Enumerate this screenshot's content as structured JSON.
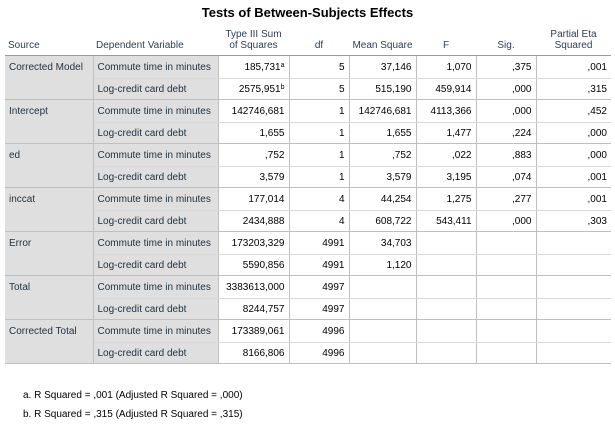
{
  "title": "Tests of Between-Subjects Effects",
  "headers": {
    "source": "Source",
    "dependent": "Dependent Variable",
    "ss": "Type III Sum of Squares",
    "df": "df",
    "ms": "Mean Square",
    "f": "F",
    "sig": "Sig.",
    "eta": "Partial Eta Squared"
  },
  "rows": [
    {
      "source": "Corrected Model",
      "r1": {
        "dep": "Commute time in minutes",
        "ss": "185,731",
        "sup": "a",
        "df": "5",
        "ms": "37,146",
        "f": "1,070",
        "sig": ",375",
        "eta": ",001"
      },
      "r2": {
        "dep": "Log-credit card debt",
        "ss": "2575,951",
        "sup": "b",
        "df": "5",
        "ms": "515,190",
        "f": "459,914",
        "sig": ",000",
        "eta": ",315"
      }
    },
    {
      "source": "Intercept",
      "r1": {
        "dep": "Commute time in minutes",
        "ss": "142746,681",
        "df": "1",
        "ms": "142746,681",
        "f": "4113,366",
        "sig": ",000",
        "eta": ",452"
      },
      "r2": {
        "dep": "Log-credit card debt",
        "ss": "1,655",
        "df": "1",
        "ms": "1,655",
        "f": "1,477",
        "sig": ",224",
        "eta": ",000"
      }
    },
    {
      "source": "ed",
      "r1": {
        "dep": "Commute time in minutes",
        "ss": ",752",
        "df": "1",
        "ms": ",752",
        "f": ",022",
        "sig": ",883",
        "eta": ",000"
      },
      "r2": {
        "dep": "Log-credit card debt",
        "ss": "3,579",
        "df": "1",
        "ms": "3,579",
        "f": "3,195",
        "sig": ",074",
        "eta": ",001"
      }
    },
    {
      "source": "inccat",
      "r1": {
        "dep": "Commute time in minutes",
        "ss": "177,014",
        "df": "4",
        "ms": "44,254",
        "f": "1,275",
        "sig": ",277",
        "eta": ",001"
      },
      "r2": {
        "dep": "Log-credit card debt",
        "ss": "2434,888",
        "df": "4",
        "ms": "608,722",
        "f": "543,411",
        "sig": ",000",
        "eta": ",303"
      }
    },
    {
      "source": "Error",
      "r1": {
        "dep": "Commute time in minutes",
        "ss": "173203,329",
        "df": "4991",
        "ms": "34,703",
        "f": "",
        "sig": "",
        "eta": ""
      },
      "r2": {
        "dep": "Log-credit card debt",
        "ss": "5590,856",
        "df": "4991",
        "ms": "1,120",
        "f": "",
        "sig": "",
        "eta": ""
      }
    },
    {
      "source": "Total",
      "r1": {
        "dep": "Commute time in minutes",
        "ss": "3383613,000",
        "df": "4997",
        "ms": "",
        "f": "",
        "sig": "",
        "eta": ""
      },
      "r2": {
        "dep": "Log-credit card debt",
        "ss": "8244,757",
        "df": "4997",
        "ms": "",
        "f": "",
        "sig": "",
        "eta": ""
      }
    },
    {
      "source": "Corrected Total",
      "r1": {
        "dep": "Commute time in minutes",
        "ss": "173389,061",
        "df": "4996",
        "ms": "",
        "f": "",
        "sig": "",
        "eta": ""
      },
      "r2": {
        "dep": "Log-credit card debt",
        "ss": "8166,806",
        "df": "4996",
        "ms": "",
        "f": "",
        "sig": "",
        "eta": ""
      }
    }
  ],
  "notes": [
    "a. R Squared = ,001 (Adjusted R Squared = ,000)",
    "b. R Squared = ,315 (Adjusted R Squared = ,315)"
  ]
}
